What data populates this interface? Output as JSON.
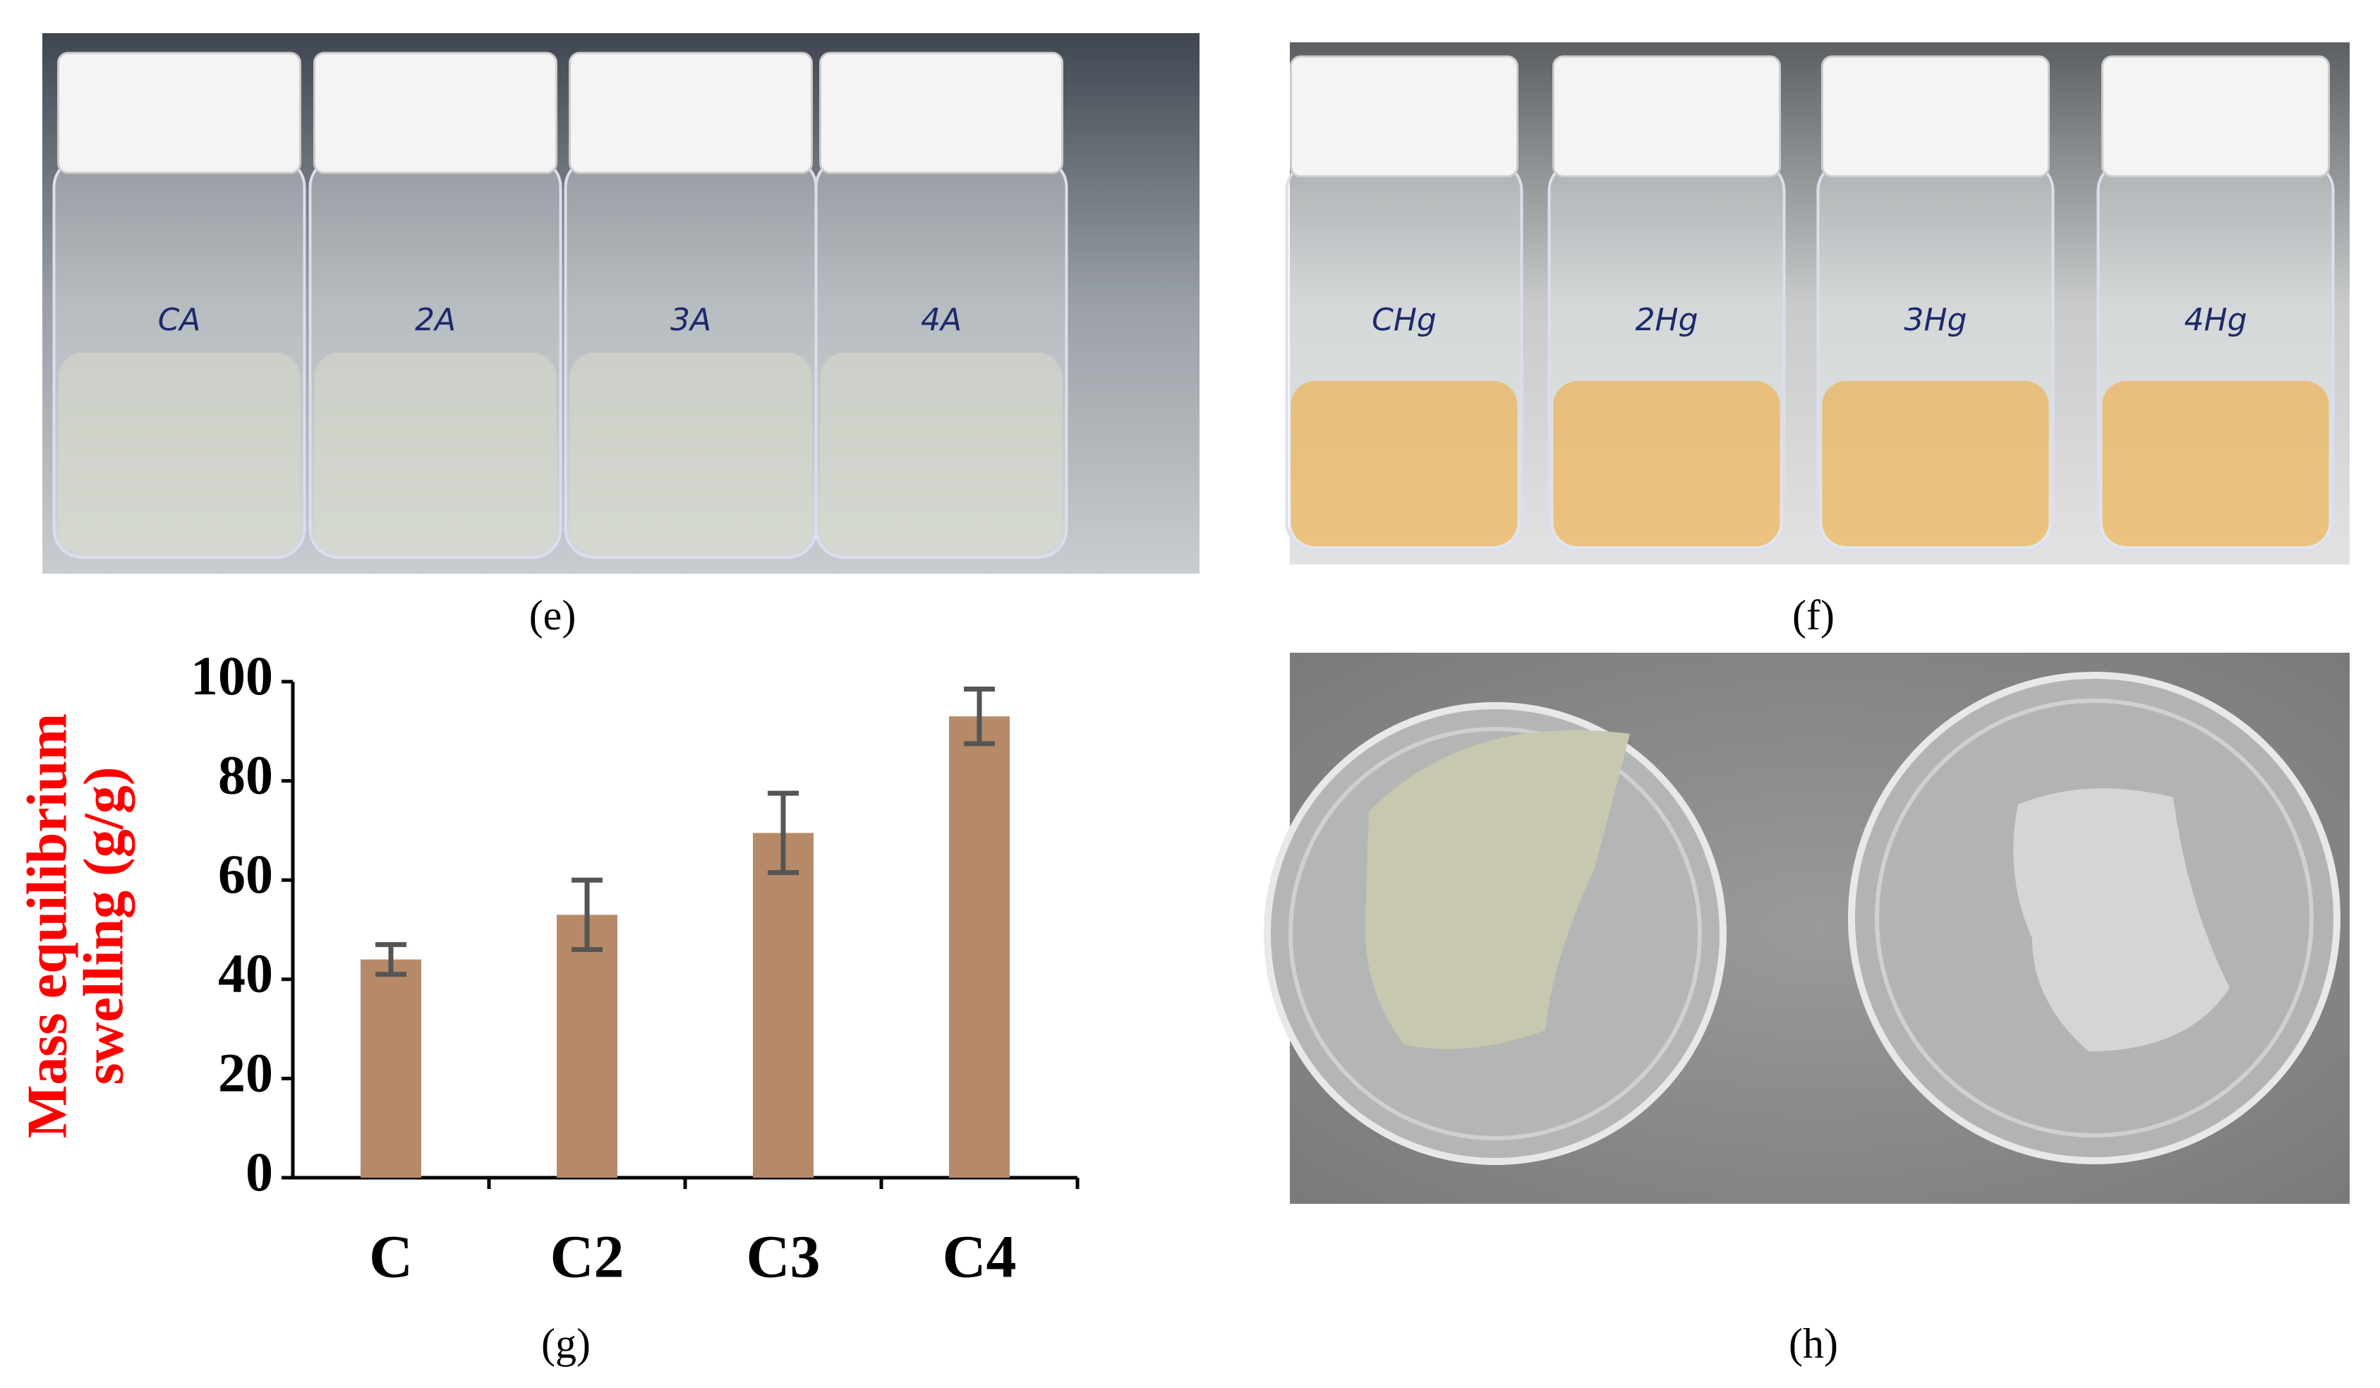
{
  "panels": {
    "e": {
      "label": "(e)",
      "vial_labels": [
        "CA",
        "2A",
        "3A",
        "4A"
      ]
    },
    "f": {
      "label": "(f)",
      "vial_labels": [
        "CHg",
        "2Hg",
        "3Hg",
        "4Hg"
      ]
    },
    "h": {
      "label": "(h)"
    },
    "g": {
      "label": "(g)"
    }
  },
  "chart_data": {
    "type": "bar",
    "y_label": [
      "Mass equilibrium",
      "swelling (g/g)"
    ],
    "categories": [
      "C",
      "C2",
      "C3",
      "C4"
    ],
    "values": [
      44,
      53,
      69.5,
      93
    ],
    "errors": [
      3,
      7,
      8,
      5.5
    ],
    "color": "#b68a68",
    "error_color": "#555555",
    "ylim": [
      0,
      100
    ],
    "yticks": [
      0,
      20,
      40,
      60,
      80,
      100
    ],
    "grid": false
  }
}
